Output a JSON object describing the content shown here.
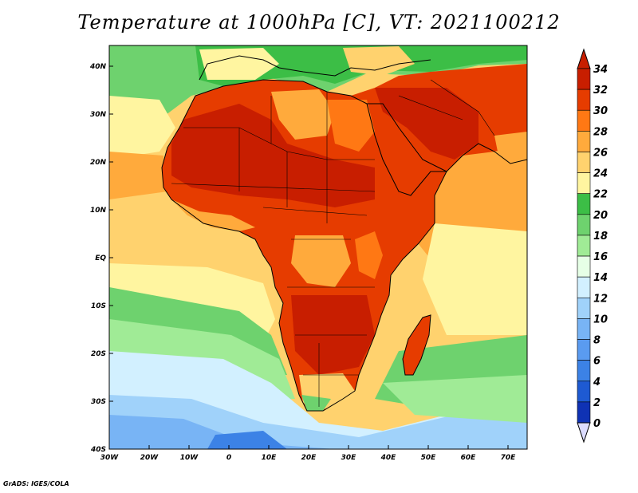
{
  "title": "Temperature at 1000hPa [C], VT: 2021100212",
  "footer": "GrADS: IGES/COLA",
  "map": {
    "lon_ticks": [
      "30W",
      "20W",
      "10W",
      "0",
      "10E",
      "20E",
      "30E",
      "40E",
      "50E",
      "60E",
      "70E"
    ],
    "lat_ticks": [
      "40N",
      "30N",
      "20N",
      "10N",
      "EQ",
      "10S",
      "20S",
      "30S",
      "40S"
    ]
  },
  "colorbar": {
    "levels": [
      "0",
      "2",
      "4",
      "6",
      "8",
      "10",
      "12",
      "14",
      "16",
      "18",
      "20",
      "22",
      "24",
      "26",
      "28",
      "30",
      "32",
      "34"
    ],
    "colors": [
      "#0a0a6e",
      "#0f32b4",
      "#1e5ad2",
      "#3c82e6",
      "#5a9bf0",
      "#78b4f5",
      "#a0d2fa",
      "#d2f0ff",
      "#e6ffe6",
      "#a0eb96",
      "#6ed26e",
      "#3cbe46",
      "#fff5a0",
      "#ffd26e",
      "#ffaa3c",
      "#ff7814",
      "#e63c00",
      "#c81e00"
    ],
    "under_color": "#dcdcff",
    "over_color": "#c81e00"
  }
}
